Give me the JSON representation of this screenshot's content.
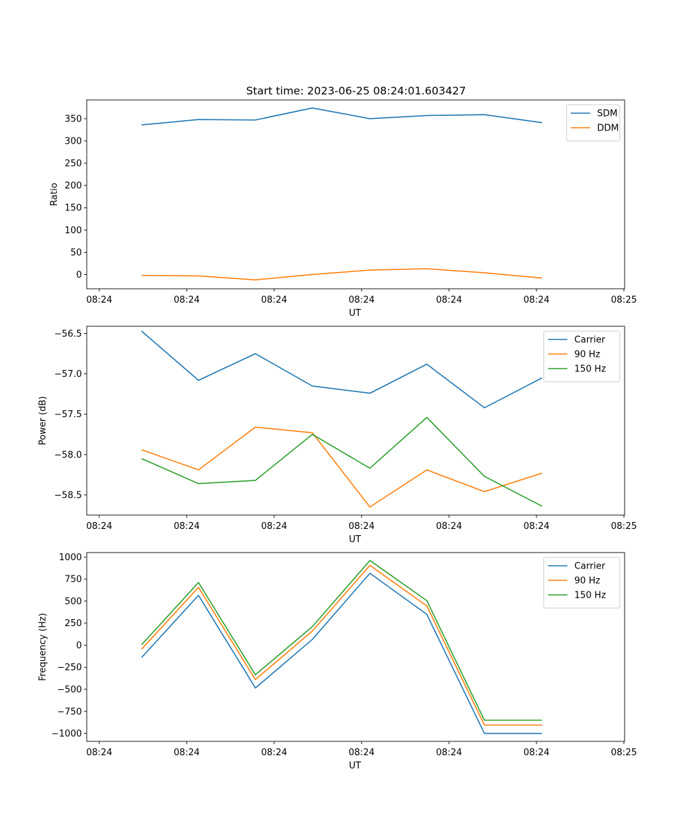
{
  "figure": {
    "title": "Start time: 2023-06-25 08:24:01.603427"
  },
  "chart_data": [
    {
      "type": "line",
      "xlabel": "UT",
      "ylabel": "Ratio",
      "x_tick_labels": [
        "08:24",
        "08:24",
        "08:24",
        "08:24",
        "08:24",
        "08:24",
        "08:25"
      ],
      "y_ticks": [
        0,
        50,
        100,
        150,
        200,
        250,
        300,
        350
      ],
      "ylim": [
        -32,
        392
      ],
      "legend_position": "top-right",
      "grid": false,
      "series": [
        {
          "name": "SDM",
          "color": "#1f77b4",
          "values": [
            336,
            348,
            347,
            374,
            350,
            357,
            359,
            341
          ]
        },
        {
          "name": "DDM",
          "color": "#ff7f0e",
          "values": [
            -2,
            -3,
            -12,
            0,
            10,
            13,
            4,
            -8
          ]
        }
      ]
    },
    {
      "type": "line",
      "xlabel": "UT",
      "ylabel": "Power (dB)",
      "x_tick_labels": [
        "08:24",
        "08:24",
        "08:24",
        "08:24",
        "08:24",
        "08:24",
        "08:25"
      ],
      "y_ticks": [
        -56.5,
        -57.0,
        -57.5,
        -58.0,
        -58.5
      ],
      "y_tick_labels": [
        "−56.5",
        "−57.0",
        "−57.5",
        "−58.0",
        "−58.5"
      ],
      "ylim": [
        -58.75,
        -56.41
      ],
      "legend_position": "top-right",
      "grid": false,
      "series": [
        {
          "name": "Carrier",
          "color": "#1f77b4",
          "values": [
            -56.47,
            -57.08,
            -56.75,
            -57.15,
            -57.24,
            -56.88,
            -57.42,
            -57.05
          ]
        },
        {
          "name": "90 Hz",
          "color": "#ff7f0e",
          "values": [
            -57.94,
            -58.19,
            -57.66,
            -57.73,
            -58.65,
            -58.19,
            -58.46,
            -58.23
          ]
        },
        {
          "name": "150 Hz",
          "color": "#2ca02c",
          "values": [
            -58.05,
            -58.36,
            -58.32,
            -57.75,
            -58.17,
            -57.54,
            -58.27,
            -58.64
          ]
        }
      ]
    },
    {
      "type": "line",
      "xlabel": "UT",
      "ylabel": "Frequency (Hz)",
      "x_tick_labels": [
        "08:24",
        "08:24",
        "08:24",
        "08:24",
        "08:24",
        "08:24",
        "08:25"
      ],
      "y_ticks": [
        1000,
        750,
        500,
        250,
        0,
        -250,
        -500,
        -750,
        -1000
      ],
      "y_tick_labels": [
        "1000",
        "750",
        "500",
        "250",
        "0",
        "−250",
        "−500",
        "−750",
        "−1000"
      ],
      "ylim": [
        -1090,
        1050
      ],
      "legend_position": "top-right",
      "grid": false,
      "series": [
        {
          "name": "Carrier",
          "color": "#1f77b4",
          "values": [
            -140,
            565,
            -485,
            65,
            815,
            350,
            -1000,
            -1000
          ]
        },
        {
          "name": "90 Hz",
          "color": "#ff7f0e",
          "values": [
            -45,
            655,
            -390,
            160,
            905,
            445,
            -905,
            -905
          ]
        },
        {
          "name": "150 Hz",
          "color": "#2ca02c",
          "values": [
            5,
            710,
            -335,
            210,
            960,
            505,
            -850,
            -850
          ]
        }
      ]
    }
  ]
}
